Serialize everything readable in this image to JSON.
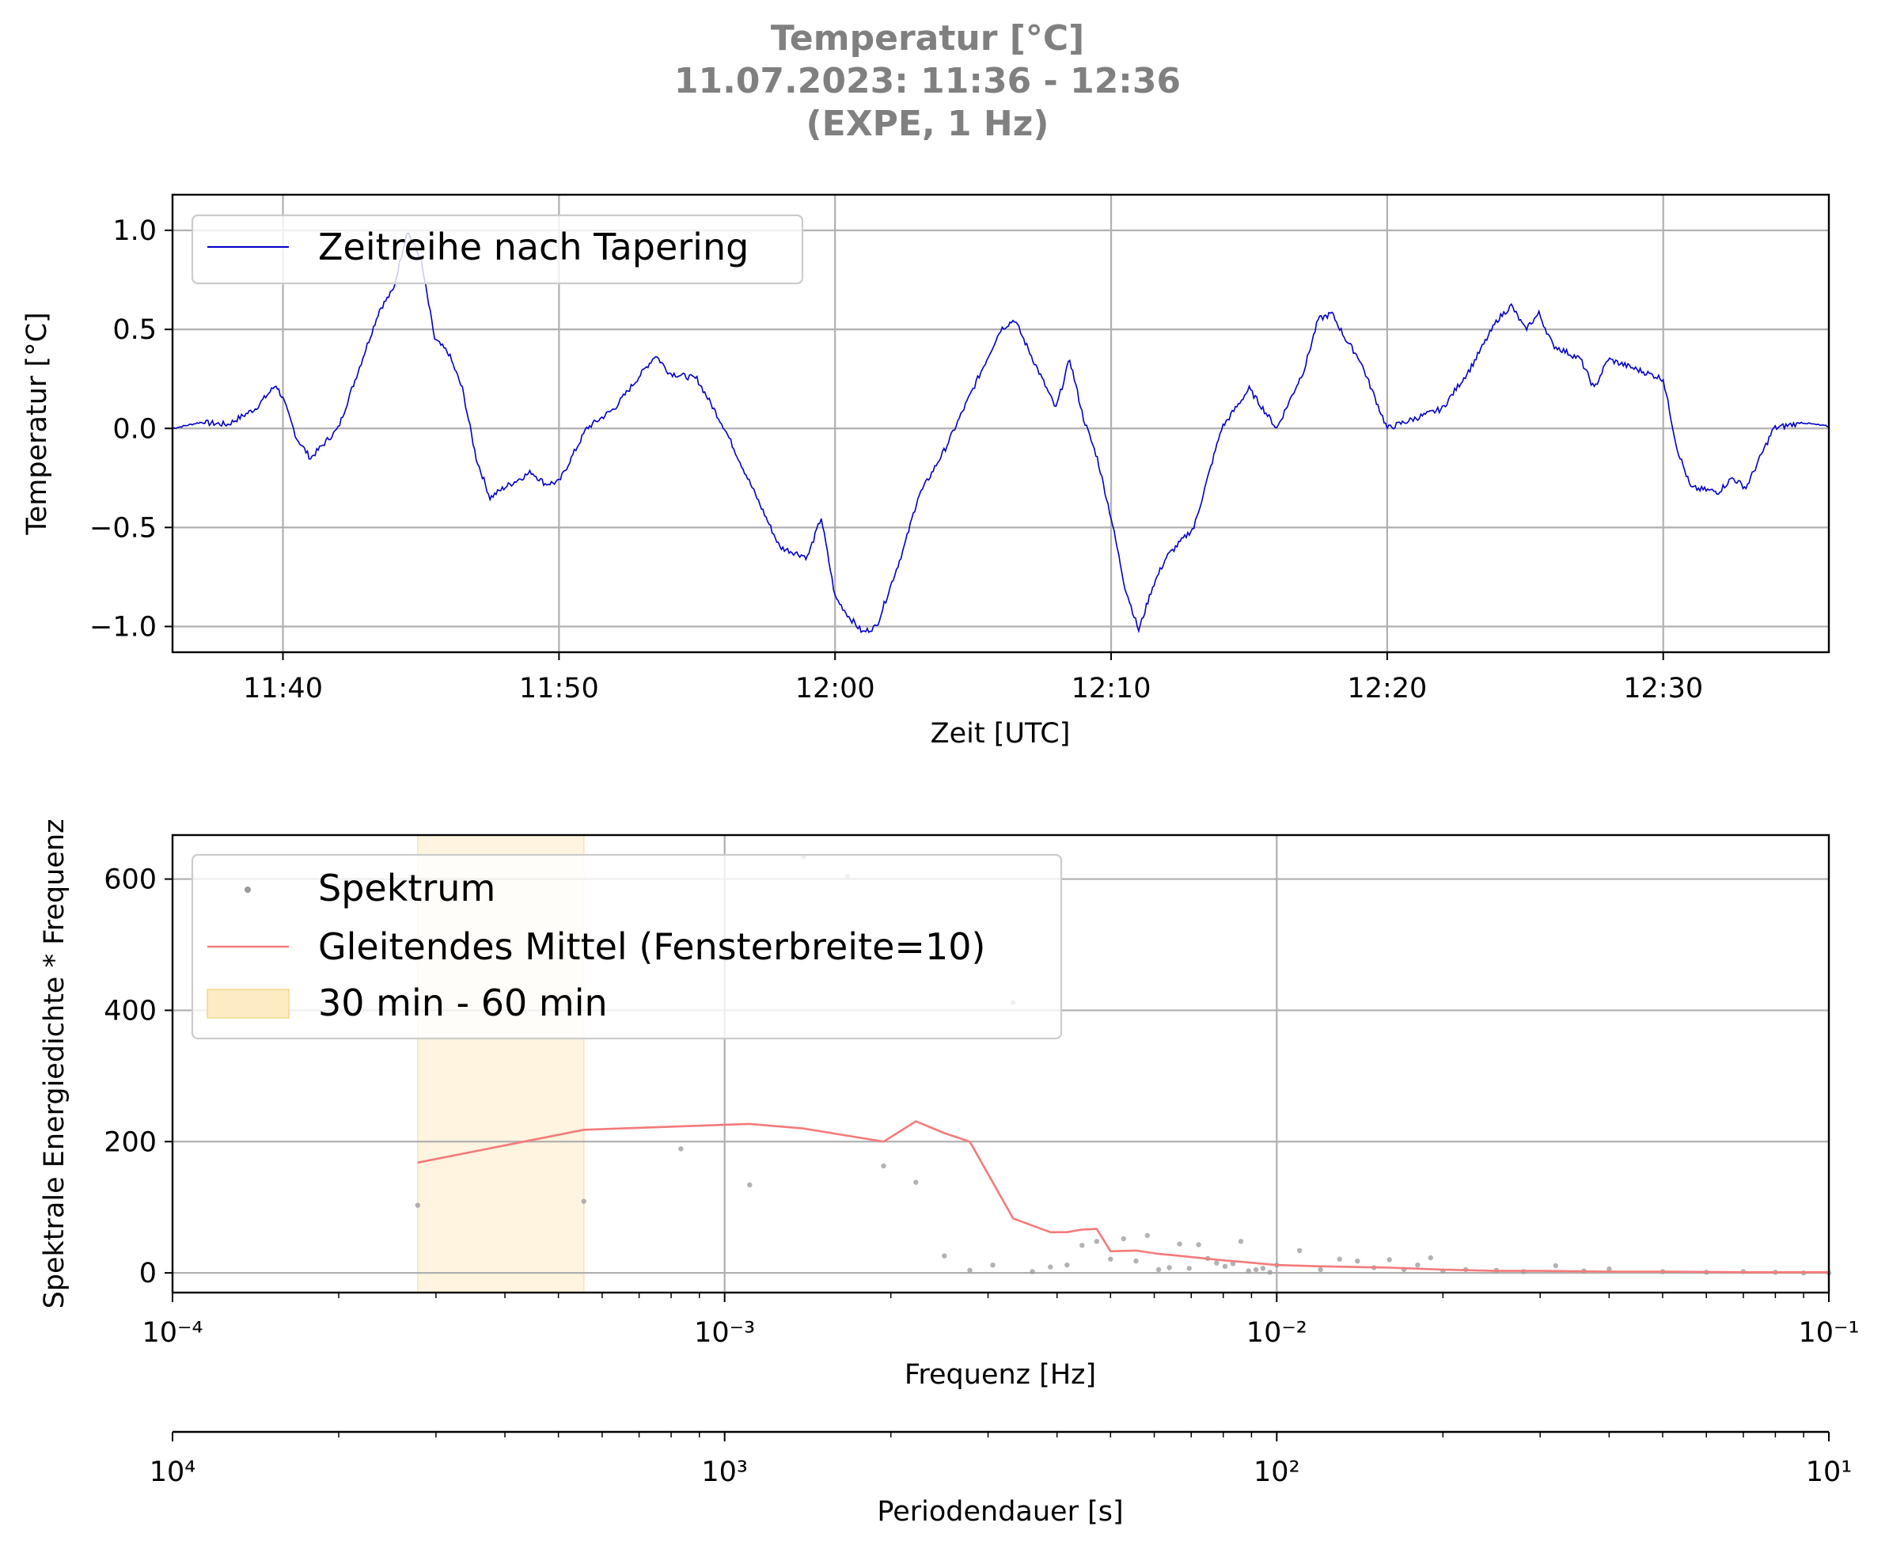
{
  "figure": {
    "title_lines": [
      "Temperatur [°C]",
      "11.07.2023:  11:36 -  12:36",
      "(EXPE, 1 Hz)"
    ],
    "title_color": "#808080"
  },
  "chart_data": [
    {
      "type": "line",
      "xlabel": "Zeit [UTC]",
      "ylabel": "Temperatur [°C]",
      "xlim_minutes": [
        0,
        60
      ],
      "x_ticks": [
        "11:40",
        "11:50",
        "12:00",
        "12:10",
        "12:20",
        "12:30"
      ],
      "ylim": [
        -1.13,
        1.18
      ],
      "y_ticks": [
        "1.0",
        "0.5",
        "0.0",
        "−0.5",
        "−1.0"
      ],
      "y_tick_values": [
        1.0,
        0.5,
        0.0,
        -0.5,
        -1.0
      ],
      "grid": true,
      "legend_position": "upper-left",
      "series": [
        {
          "name": "Zeitreihe nach Tapering",
          "color": "#0000cc",
          "x": [
            "11:36",
            "11:37",
            "11:38",
            "11:39",
            "11:39:45",
            "11:40",
            "11:40:30",
            "11:41",
            "11:42",
            "11:42:30",
            "11:43",
            "11:43:30",
            "11:44",
            "11:44:30",
            "11:45",
            "11:45:30",
            "11:46",
            "11:46:30",
            "11:47",
            "11:47:30",
            "11:48",
            "11:49",
            "11:49:30",
            "11:50",
            "11:51",
            "11:52",
            "11:53",
            "11:53:30",
            "11:54",
            "11:55",
            "11:56",
            "11:57",
            "11:58",
            "11:59",
            "11:59:30",
            "12:00",
            "12:00:30",
            "12:01",
            "12:01:30",
            "12:02",
            "12:02:30",
            "12:03",
            "12:04",
            "12:05",
            "12:06",
            "12:06:30",
            "12:07",
            "12:08",
            "12:08:30",
            "12:09",
            "12:09:30",
            "12:10",
            "12:10:30",
            "12:11",
            "12:11:30",
            "12:12",
            "12:13",
            "12:14",
            "12:15",
            "12:16",
            "12:17",
            "12:17:30",
            "12:18",
            "12:18:30",
            "12:19",
            "12:20",
            "12:21",
            "12:22",
            "12:23",
            "12:24",
            "12:24:30",
            "12:25",
            "12:25:30",
            "12:26",
            "12:27",
            "12:27:30",
            "12:28",
            "12:29",
            "12:30",
            "12:30:30",
            "12:31",
            "12:32",
            "12:32:30",
            "12:33",
            "12:34",
            "12:35",
            "12:36"
          ],
          "values": [
            0.0,
            0.03,
            0.02,
            0.1,
            0.22,
            0.15,
            -0.05,
            -0.15,
            0.0,
            0.2,
            0.4,
            0.6,
            0.7,
            1.0,
            0.85,
            0.45,
            0.38,
            0.2,
            -0.15,
            -0.35,
            -0.3,
            -0.22,
            -0.28,
            -0.27,
            0.0,
            0.1,
            0.28,
            0.37,
            0.28,
            0.25,
            0.0,
            -0.3,
            -0.6,
            -0.65,
            -0.45,
            -0.85,
            -0.95,
            -1.03,
            -1.0,
            -0.8,
            -0.6,
            -0.35,
            -0.1,
            0.2,
            0.5,
            0.55,
            0.4,
            0.1,
            0.35,
            0.05,
            -0.15,
            -0.45,
            -0.8,
            -1.02,
            -0.8,
            -0.65,
            -0.5,
            0.0,
            0.2,
            0.0,
            0.3,
            0.55,
            0.58,
            0.45,
            0.35,
            0.0,
            0.05,
            0.1,
            0.3,
            0.55,
            0.62,
            0.5,
            0.58,
            0.42,
            0.35,
            0.2,
            0.35,
            0.3,
            0.25,
            -0.1,
            -0.3,
            -0.32,
            -0.25,
            -0.3,
            0.0,
            0.03,
            0.01
          ]
        }
      ]
    },
    {
      "type": "scatter",
      "xlabel": "Frequenz [Hz]",
      "ylabel": "Spektrale Energiedichte * Frequenz",
      "x_scale": "log",
      "xlim": [
        0.0001,
        0.1
      ],
      "x_ticks": [
        "10⁻⁴",
        "10⁻³",
        "10⁻²",
        "10⁻¹"
      ],
      "ylim": [
        -30,
        667
      ],
      "y_ticks": [
        "0",
        "200",
        "400",
        "600"
      ],
      "y_tick_values": [
        0,
        200,
        400,
        600
      ],
      "grid": true,
      "legend_position": "upper-left",
      "highlight_band": {
        "label": "30 min - 60 min",
        "x": [
          0.000278,
          0.000556
        ],
        "color": "#fdebc4"
      },
      "series": [
        {
          "name": "Spektrum",
          "type": "scatter",
          "color": "#999999",
          "x": [
            0.000278,
            0.000556,
            0.000833,
            0.00111,
            0.00139,
            0.00167,
            0.00194,
            0.00222,
            0.0025,
            0.00278,
            0.00306,
            0.00333,
            0.00361,
            0.00389,
            0.00417,
            0.00444,
            0.00472,
            0.005,
            0.00528,
            0.00556,
            0.00583,
            0.00611,
            0.00639,
            0.00667,
            0.00694,
            0.00722,
            0.0075,
            0.00778,
            0.00806,
            0.00833,
            0.00861,
            0.00889,
            0.00917,
            0.00944,
            0.00972,
            0.01,
            0.011,
            0.012,
            0.013,
            0.014,
            0.015,
            0.016,
            0.017,
            0.018,
            0.019,
            0.02,
            0.022,
            0.025,
            0.028,
            0.032,
            0.036,
            0.04,
            0.05,
            0.06,
            0.07,
            0.08,
            0.09,
            0.1
          ],
          "values": [
            103,
            109,
            189,
            134,
            634,
            604,
            163,
            138,
            26,
            4,
            12,
            412,
            2,
            9,
            12,
            42,
            48,
            21,
            52,
            18,
            57,
            5,
            8,
            44,
            7,
            43,
            22,
            15,
            10,
            14,
            48,
            3,
            5,
            7,
            1,
            12,
            34,
            5,
            21,
            18,
            8,
            20,
            5,
            12,
            23,
            3,
            5,
            4,
            2,
            11,
            3,
            6,
            2,
            1,
            2,
            1,
            0,
            0
          ]
        },
        {
          "name": "Gleitendes Mittel (Fensterbreite=10)",
          "type": "line",
          "color": "#f47a7a",
          "x": [
            0.000278,
            0.000556,
            0.00111,
            0.00139,
            0.00194,
            0.00222,
            0.0025,
            0.00278,
            0.00333,
            0.00389,
            0.00417,
            0.00444,
            0.00472,
            0.005,
            0.00556,
            0.00611,
            0.00667,
            0.00778,
            0.00889,
            0.01,
            0.012,
            0.014,
            0.016,
            0.02,
            0.025,
            0.03,
            0.04,
            0.05,
            0.07,
            0.1
          ],
          "values": [
            168,
            218,
            227,
            220,
            200,
            231,
            213,
            200,
            83,
            62,
            62,
            66,
            67,
            33,
            34,
            29,
            26,
            20,
            16,
            12,
            10,
            9,
            8,
            5,
            3,
            3,
            2,
            2,
            1,
            1
          ]
        }
      ],
      "secondary_axis": {
        "xlabel": "Periodendauer [s]",
        "x_ticks": [
          "10⁴",
          "10³",
          "10²",
          "10¹"
        ]
      }
    }
  ]
}
